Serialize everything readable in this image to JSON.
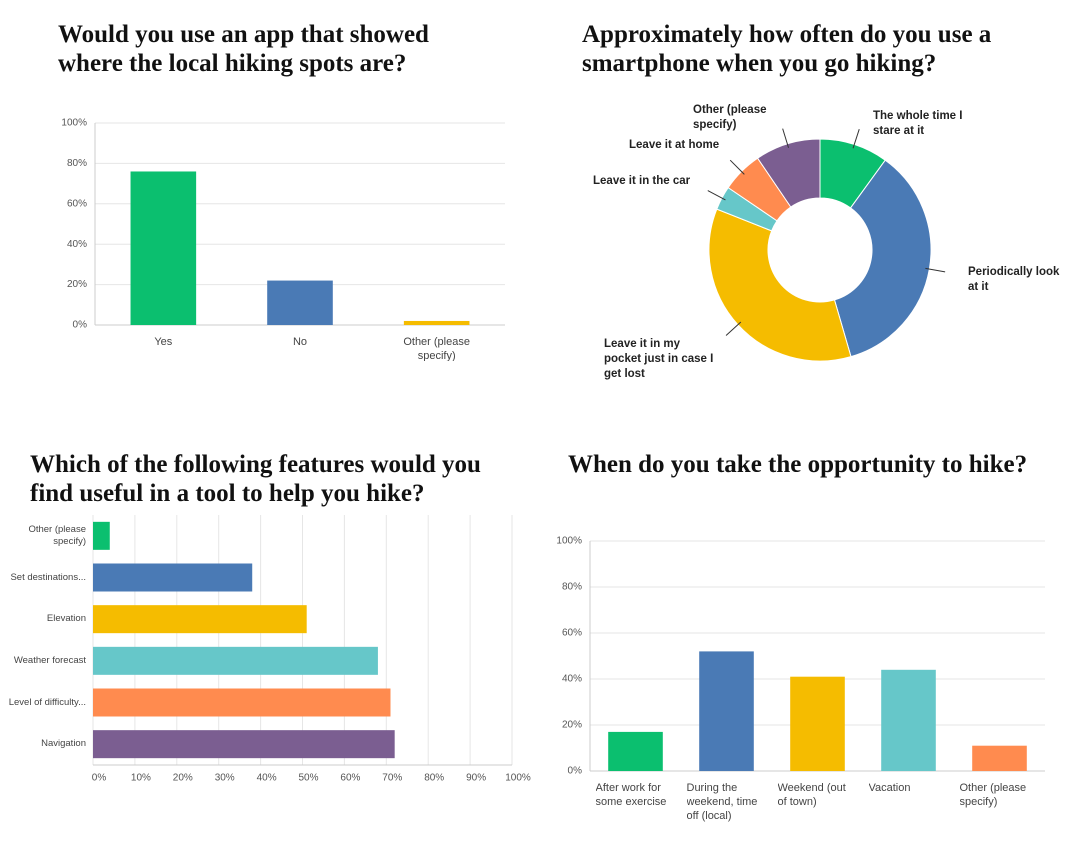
{
  "chart_data": [
    {
      "type": "bar",
      "title": "Would you use an app that showed where the local hiking spots are?",
      "categories": [
        "Yes",
        "No",
        "Other (please specify)"
      ],
      "values": [
        76,
        22,
        2
      ],
      "colors": [
        "#0bbf6f",
        "#4a7ab5",
        "#f5bc00"
      ],
      "ylim": [
        0,
        100
      ],
      "yticks": [
        {
          "value": 0,
          "label": "0%"
        },
        {
          "value": 20,
          "label": "20%"
        },
        {
          "value": 40,
          "label": "40%"
        },
        {
          "value": 60,
          "label": "60%"
        },
        {
          "value": 80,
          "label": "80%"
        },
        {
          "value": 100,
          "label": "100%"
        }
      ],
      "grid": true
    },
    {
      "type": "donut",
      "title": "Approximately how often do you use a smartphone when you go hiking?",
      "categories": [
        "The whole time I stare at it",
        "Periodically look at it",
        "Leave it in my pocket just in case I get lost",
        "Leave it in the car",
        "Leave it at home",
        "Other (please specify)"
      ],
      "values": [
        10,
        35.5,
        35.5,
        3.5,
        6,
        9.5
      ],
      "colors": [
        "#0bbf6f",
        "#4a7ab5",
        "#f5bc00",
        "#66c7c9",
        "#ff8b4f",
        "#7b5e91"
      ]
    },
    {
      "type": "hbar",
      "title": "Which of the following features would you find useful in a tool to help you hike?",
      "categories": [
        "Other (please specify)",
        "Set destinations...",
        "Elevation",
        "Weather forecast",
        "Level of difficulty...",
        "Navigation"
      ],
      "values": [
        4,
        38,
        51,
        68,
        71,
        72
      ],
      "colors": [
        "#0bbf6f",
        "#4a7ab5",
        "#f5bc00",
        "#66c7c9",
        "#ff8b4f",
        "#7b5e91"
      ],
      "xlim": [
        0,
        100
      ],
      "xticks": [
        {
          "value": 0,
          "label": "0%"
        },
        {
          "value": 10,
          "label": "10%"
        },
        {
          "value": 20,
          "label": "20%"
        },
        {
          "value": 30,
          "label": "30%"
        },
        {
          "value": 40,
          "label": "40%"
        },
        {
          "value": 50,
          "label": "50%"
        },
        {
          "value": 60,
          "label": "60%"
        },
        {
          "value": 70,
          "label": "70%"
        },
        {
          "value": 80,
          "label": "80%"
        },
        {
          "value": 90,
          "label": "90%"
        },
        {
          "value": 100,
          "label": "100%"
        }
      ],
      "grid": true
    },
    {
      "type": "bar",
      "title": "When do you take the opportunity to hike?",
      "categories": [
        "After work for some exercise",
        "During the weekend, time off (local)",
        "Weekend (out of town)",
        "Vacation",
        "Other (please specify)"
      ],
      "values": [
        17,
        52,
        41,
        44,
        11
      ],
      "colors": [
        "#0bbf6f",
        "#4a7ab5",
        "#f5bc00",
        "#66c7c9",
        "#ff8b4f"
      ],
      "ylim": [
        0,
        100
      ],
      "yticks": [
        {
          "value": 0,
          "label": "0%"
        },
        {
          "value": 20,
          "label": "20%"
        },
        {
          "value": 40,
          "label": "40%"
        },
        {
          "value": 60,
          "label": "60%"
        },
        {
          "value": 80,
          "label": "80%"
        },
        {
          "value": 100,
          "label": "100%"
        }
      ],
      "grid": true
    }
  ]
}
